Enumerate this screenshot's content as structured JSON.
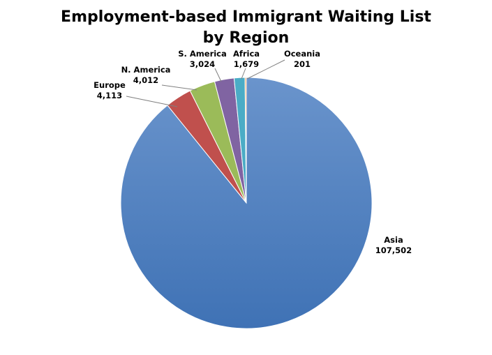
{
  "chart_data": {
    "type": "pie",
    "title": [
      "Employment-based Immigrant Waiting List",
      "by Region"
    ],
    "start_angle": "12 o'clock",
    "direction": "clockwise",
    "slices": [
      {
        "label": "Asia",
        "value": 107502,
        "value_text": "107,502",
        "color": "#4a7ebb"
      },
      {
        "label": "Europe",
        "value": 4113,
        "value_text": "4,113",
        "color": "#c0504d"
      },
      {
        "label": "N. America",
        "value": 4012,
        "value_text": "4,012",
        "color": "#9bbb59"
      },
      {
        "label": "S. America",
        "value": 3024,
        "value_text": "3,024",
        "color": "#8064a2"
      },
      {
        "label": "Africa",
        "value": 1679,
        "value_text": "1,679",
        "color": "#4bacc6"
      },
      {
        "label": "Oceania",
        "value": 201,
        "value_text": "201",
        "color": "#f79646"
      }
    ]
  }
}
